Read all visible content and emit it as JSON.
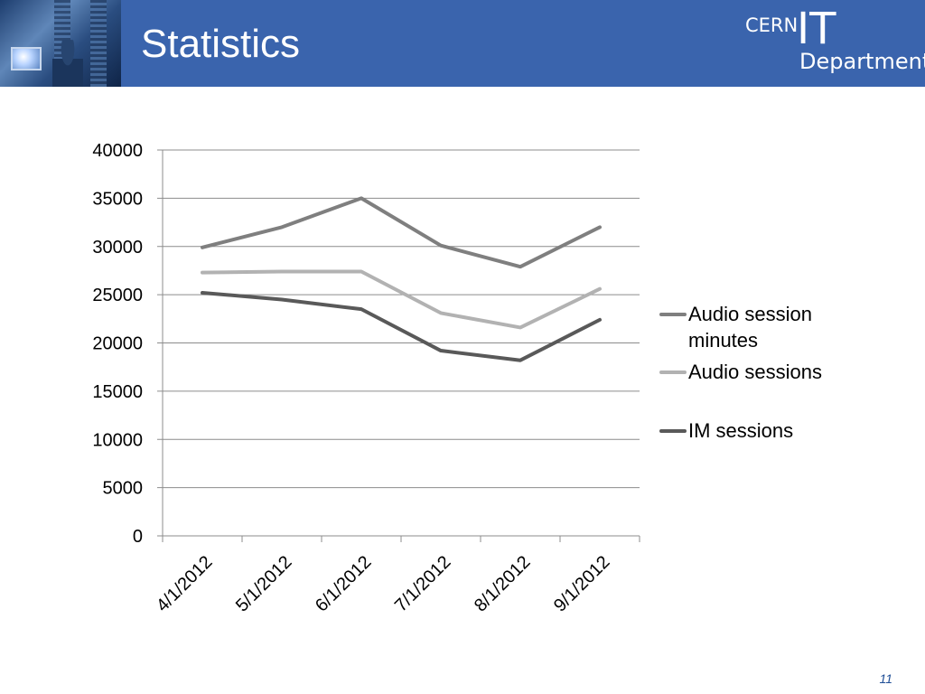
{
  "header": {
    "title": "Statistics",
    "logo": {
      "cern": "CERN",
      "it": "IT",
      "department": "Department"
    }
  },
  "slide_number": "11",
  "colors": {
    "header_bg": "#3a64ad",
    "Audio session minutes": "#7f7f7f",
    "Audio sessions": "#b2b2b2",
    "IM sessions": "#595959"
  },
  "chart_data": {
    "type": "line",
    "title": "",
    "xlabel": "",
    "ylabel": "",
    "categories": [
      "4/1/2012",
      "5/1/2012",
      "6/1/2012",
      "7/1/2012",
      "8/1/2012",
      "9/1/2012"
    ],
    "ylim": [
      0,
      40000
    ],
    "yticks": [
      "0",
      "5000",
      "10000",
      "15000",
      "20000",
      "25000",
      "30000",
      "35000",
      "40000"
    ],
    "grid": "horizontal",
    "legend_position": "right",
    "series": [
      {
        "name": "Audio session minutes",
        "values": [
          29900,
          32000,
          35000,
          30100,
          27900,
          32000
        ]
      },
      {
        "name": "Audio sessions",
        "values": [
          27300,
          27400,
          27400,
          23100,
          21600,
          25600
        ]
      },
      {
        "name": "IM sessions",
        "values": [
          25200,
          24500,
          23500,
          19200,
          18200,
          22400
        ]
      }
    ]
  }
}
